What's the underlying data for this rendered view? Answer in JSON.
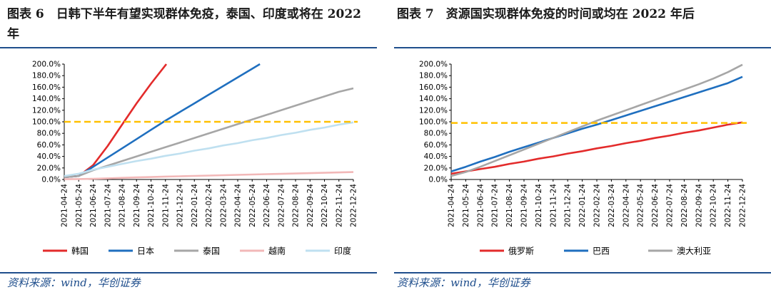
{
  "charts": [
    {
      "title": "图表 6　日韩下半年有望实现群体免疫，泰国、印度或将在 2022 年",
      "source": "资料来源：wind，华创证券"
    },
    {
      "title": "图表 7　资源国实现群体免疫的时间或均在 2022 年后",
      "source": "资料来源：wind，华创证券"
    }
  ],
  "chart_data": [
    {
      "type": "line",
      "x": [
        "2021-04-24",
        "2021-05-24",
        "2021-06-24",
        "2021-07-24",
        "2021-08-24",
        "2021-09-24",
        "2021-10-24",
        "2021-11-24",
        "2021-12-24",
        "2022-01-24",
        "2022-02-24",
        "2022-03-24",
        "2022-04-24",
        "2022-05-24",
        "2022-06-24",
        "2022-07-24",
        "2022-08-24",
        "2022-09-24",
        "2022-10-24",
        "2022-11-24",
        "2022-12-24"
      ],
      "y_ticks": [
        "0.0%",
        "20.0%",
        "40.0%",
        "60.0%",
        "80.0%",
        "100.0%",
        "120.0%",
        "140.0%",
        "160.0%",
        "180.0%",
        "200.0%"
      ],
      "ylim": [
        0,
        200
      ],
      "grid": false,
      "legend_position": "bottom",
      "threshold": {
        "value": 100,
        "color": "#ffc000",
        "style": "dashed"
      },
      "series": [
        {
          "name": "韩国",
          "color": "#e32b2b",
          "values": [
            4,
            6,
            25,
            58,
            95,
            132,
            166,
            198,
            null,
            null,
            null,
            null,
            null,
            null,
            null,
            null,
            null,
            null,
            null,
            null,
            null
          ]
        },
        {
          "name": "日本",
          "color": "#1f6fbf",
          "values": [
            4,
            6,
            22,
            38,
            54,
            70,
            86,
            102,
            117,
            132,
            147,
            162,
            177,
            192,
            null,
            null,
            null,
            null,
            null,
            null,
            null
          ]
        },
        {
          "name": "泰国",
          "color": "#a6a6a6",
          "values": [
            4,
            6,
            16,
            24,
            32,
            40,
            48,
            56,
            64,
            72,
            80,
            88,
            96,
            104,
            112,
            120,
            128,
            136,
            144,
            152,
            158
          ]
        },
        {
          "name": "越南",
          "color": "#f2b8b8",
          "values": [
            0.5,
            0.8,
            1.2,
            2,
            2.8,
            3.6,
            4.2,
            5,
            5.6,
            6.2,
            6.8,
            7.4,
            8,
            8.6,
            9.2,
            9.8,
            10.4,
            11,
            11.6,
            12.2,
            12.8
          ]
        },
        {
          "name": "印度",
          "color": "#bfe0f0",
          "values": [
            6,
            10,
            17,
            22,
            27,
            32,
            36,
            41,
            45,
            50,
            54,
            59,
            63,
            68,
            72,
            77,
            81,
            86,
            90,
            95,
            99
          ]
        }
      ]
    },
    {
      "type": "line",
      "x": [
        "2021-04-24",
        "2021-05-24",
        "2021-06-24",
        "2021-07-24",
        "2021-08-24",
        "2021-09-24",
        "2021-10-24",
        "2021-11-24",
        "2021-12-24",
        "2022-01-24",
        "2022-02-24",
        "2022-03-24",
        "2022-04-24",
        "2022-05-24",
        "2022-06-24",
        "2022-07-24",
        "2022-08-24",
        "2022-09-24",
        "2022-10-24",
        "2022-11-24",
        "2022-12-24"
      ],
      "y_ticks": [
        "0.0%",
        "20.0%",
        "40.0%",
        "60.0%",
        "80.0%",
        "100.0%",
        "120.0%",
        "140.0%",
        "160.0%",
        "180.0%",
        "200.0%"
      ],
      "ylim": [
        0,
        200
      ],
      "grid": false,
      "legend_position": "bottom",
      "threshold": {
        "value": 98,
        "color": "#ffc000",
        "style": "dashed"
      },
      "series": [
        {
          "name": "俄罗斯",
          "color": "#e32b2b",
          "values": [
            10,
            14,
            18,
            22,
            27,
            31,
            36,
            40,
            45,
            49,
            54,
            58,
            63,
            67,
            72,
            76,
            81,
            85,
            90,
            95,
            99
          ]
        },
        {
          "name": "巴西",
          "color": "#1f6fbf",
          "values": [
            14,
            22,
            31,
            39,
            48,
            56,
            64,
            72,
            80,
            88,
            95,
            103,
            111,
            119,
            127,
            135,
            143,
            151,
            159,
            167,
            178
          ]
        },
        {
          "name": "澳大利亚",
          "color": "#a6a6a6",
          "values": [
            6,
            13,
            22,
            32,
            42,
            52,
            62,
            72,
            82,
            92,
            102,
            111,
            120,
            129,
            138,
            147,
            156,
            165,
            175,
            186,
            199
          ]
        }
      ]
    }
  ]
}
